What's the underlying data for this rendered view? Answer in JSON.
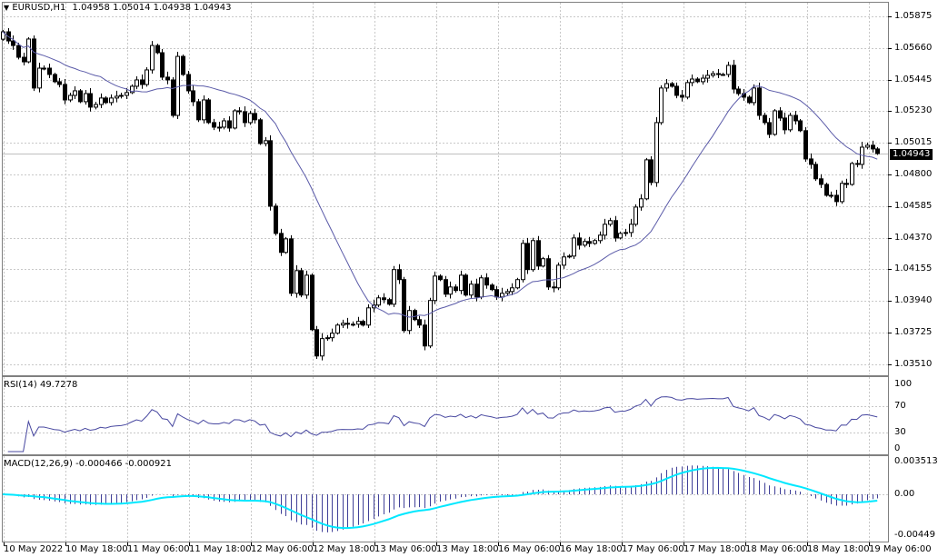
{
  "header": {
    "symbol": "EURUSD,H1",
    "ohlc": "1.04958 1.05014 1.04938 1.04943"
  },
  "price_axis": [
    "1.05875",
    "1.05660",
    "1.05445",
    "1.05230",
    "1.05015",
    "1.04800",
    "1.04585",
    "1.04370",
    "1.04155",
    "1.03940",
    "1.03725",
    "1.03510"
  ],
  "current_price": "1.04943",
  "rsi": {
    "label": "RSI(14) 49.7278",
    "scale": [
      "100",
      "70",
      "30",
      "0"
    ],
    "color": "#4848a0"
  },
  "macd": {
    "label": "MACD(12,26,9) -0.000466 -0.000921",
    "scale": [
      "0.003513",
      "0.00",
      "-0.00449"
    ],
    "hist_color": "#404098",
    "signal_color": "#00e8ff"
  },
  "time_axis": [
    "10 May 2022",
    "10 May 18:00",
    "11 May 06:00",
    "11 May 18:00",
    "12 May 06:00",
    "12 May 18:00",
    "13 May 06:00",
    "13 May 18:00",
    "16 May 06:00",
    "16 May 18:00",
    "17 May 06:00",
    "17 May 18:00",
    "18 May 06:00",
    "18 May 18:00",
    "19 May 06:00"
  ],
  "chart_data": {
    "type": "candlestick",
    "timeframe": "H1",
    "ylim": [
      1.0351,
      1.05875
    ],
    "grid": true,
    "ma_color": "#5a5aa8",
    "first_open": 1.0572,
    "closes": [
      1.0577,
      1.05708,
      1.05677,
      1.05597,
      1.05566,
      1.05721,
      1.05388,
      1.05523,
      1.05523,
      1.0548,
      1.05431,
      1.05412,
      1.05307,
      1.05338,
      1.05369,
      1.05295,
      1.0535,
      1.05258,
      1.05276,
      1.0532,
      1.05289,
      1.0532,
      1.05332,
      1.05338,
      1.05357,
      1.054,
      1.05443,
      1.05412,
      1.05511,
      1.05677,
      1.05628,
      1.05462,
      1.05443,
      1.05202,
      1.05603,
      1.0548,
      1.05369,
      1.05295,
      1.05172,
      1.05307,
      1.05153,
      1.05122,
      1.05122,
      1.05165,
      1.05116,
      1.05233,
      1.05227,
      1.05153,
      1.05215,
      1.05172,
      1.05011,
      1.0503,
      1.04585,
      1.044,
      1.04271,
      1.04363,
      1.03993,
      1.04147,
      1.03981,
      1.04116,
      1.03746,
      1.03567,
      1.03685,
      1.03691,
      1.03722,
      1.03777,
      1.03789,
      1.03783,
      1.03783,
      1.03802,
      1.03777,
      1.03894,
      1.03913,
      1.03962,
      1.0395,
      1.03919,
      1.04154,
      1.04086,
      1.0374,
      1.03876,
      1.03814,
      1.03777,
      1.03635,
      1.03944,
      1.0411,
      1.04086,
      1.03987,
      1.04036,
      1.04012,
      1.04116,
      1.03981,
      1.04055,
      1.03968,
      1.04098,
      1.04049,
      1.04018,
      1.03968,
      1.03993,
      1.04005,
      1.0403,
      1.04086,
      1.04332,
      1.04154,
      1.04351,
      1.04178,
      1.04228,
      1.04036,
      1.0403,
      1.04184,
      1.0424,
      1.04246,
      1.04369,
      1.0432,
      1.04345,
      1.04332,
      1.04351,
      1.04388,
      1.04462,
      1.04487,
      1.04369,
      1.044,
      1.04406,
      1.04462,
      1.04579,
      1.04635,
      1.049,
      1.04746,
      1.05153,
      1.05388,
      1.05418,
      1.054,
      1.05338,
      1.05326,
      1.05425,
      1.05449,
      1.05431,
      1.05455,
      1.05474,
      1.05486,
      1.0548,
      1.0548,
      1.05542,
      1.05381,
      1.0535,
      1.05326,
      1.05289,
      1.05388,
      1.05202,
      1.05153,
      1.05073,
      1.05233,
      1.05184,
      1.05104,
      1.05202,
      1.05165,
      1.05098,
      1.04906,
      1.04869,
      1.04771,
      1.04733,
      1.04659,
      1.04659,
      1.04616,
      1.0474,
      1.04733,
      1.04875,
      1.04869,
      1.04986,
      1.04999,
      1.04974,
      1.04943
    ]
  }
}
